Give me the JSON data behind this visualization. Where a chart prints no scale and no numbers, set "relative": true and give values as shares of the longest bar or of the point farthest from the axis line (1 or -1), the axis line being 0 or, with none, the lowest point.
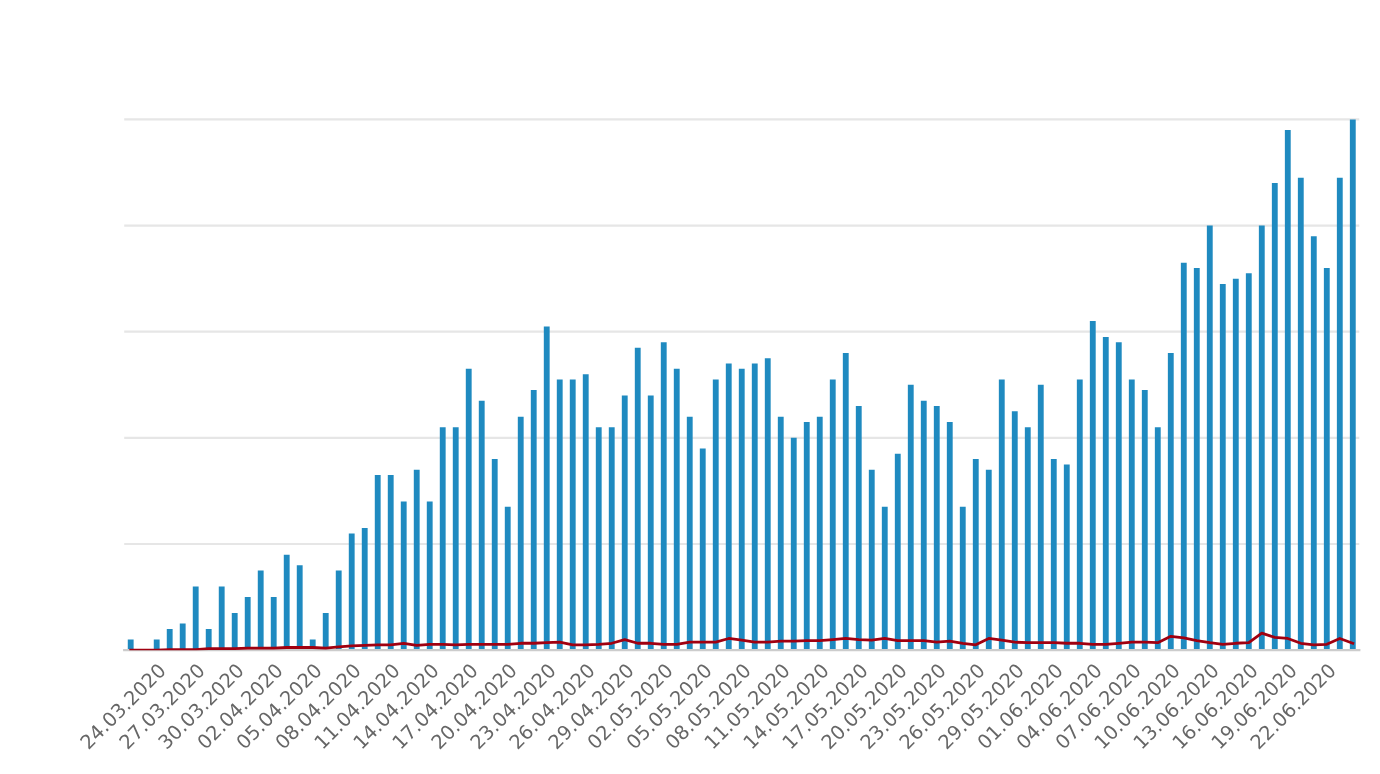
{
  "chart_data": {
    "type": "bar",
    "relative": true,
    "grid": "y",
    "legend": false,
    "categories": [
      null,
      null,
      "24.03.2020",
      null,
      null,
      "27.03.2020",
      null,
      null,
      "30.03.2020",
      null,
      null,
      "02.04.2020",
      null,
      null,
      "05.04.2020",
      null,
      null,
      "08.04.2020",
      null,
      null,
      "11.04.2020",
      null,
      null,
      "14.04.2020",
      null,
      null,
      "17.04.2020",
      null,
      null,
      "20.04.2020",
      null,
      null,
      "23.04.2020",
      null,
      null,
      "26.04.2020",
      null,
      null,
      "29.04.2020",
      null,
      null,
      "02.05.2020",
      null,
      null,
      "05.05.2020",
      null,
      null,
      "08.05.2020",
      null,
      null,
      "11.05.2020",
      null,
      null,
      "14.05.2020",
      null,
      null,
      "17.05.2020",
      null,
      null,
      "20.05.2020",
      null,
      null,
      "23.05.2020",
      null,
      null,
      "26.05.2020",
      null,
      null,
      "29.05.2020",
      null,
      null,
      "01.06.2020",
      null,
      null,
      "04.06.2020",
      null,
      null,
      "07.06.2020",
      null,
      null,
      "10.06.2020",
      null,
      null,
      "13.06.2020",
      null,
      null,
      "16.06.2020",
      null,
      null,
      "19.06.2020",
      null,
      null,
      "22.06.2020",
      null,
      null
    ],
    "series": [
      {
        "color": "#1f8ac0",
        "values": [
          0.02,
          0,
          0.02,
          0.04,
          0.05,
          0.12,
          0.04,
          0.12,
          0.07,
          0.1,
          0.15,
          0.1,
          0.18,
          0.16,
          0.02,
          0.07,
          0.15,
          0.22,
          0.23,
          0.33,
          0.33,
          0.28,
          0.34,
          0.28,
          0.42,
          0.42,
          0.53,
          0.47,
          0.36,
          0.27,
          0.44,
          0.49,
          0.61,
          0.51,
          0.51,
          0.52,
          0.42,
          0.42,
          0.48,
          0.57,
          0.48,
          0.58,
          0.53,
          0.44,
          0.38,
          0.51,
          0.54,
          0.53,
          0.54,
          0.55,
          0.44,
          0.4,
          0.43,
          0.44,
          0.51,
          0.56,
          0.46,
          0.34,
          0.27,
          0.37,
          0.5,
          0.47,
          0.46,
          0.43,
          0.27,
          0.36,
          0.34,
          0.51,
          0.45,
          0.42,
          0.5,
          0.36,
          0.35,
          0.51,
          0.62,
          0.59,
          0.58,
          0.51,
          0.49,
          0.42,
          0.56,
          0.73,
          0.72,
          0.8,
          0.69,
          0.7,
          0.71,
          0.8,
          0.88,
          0.98,
          0.89,
          0.78,
          0.72,
          0.89,
          1
        ]
      },
      {
        "type": "line",
        "color": "#a00010",
        "marker": "none",
        "line_style": "solid",
        "values": [
          0,
          0,
          0,
          0.001,
          0.001,
          0.001,
          0.003,
          0.003,
          0.003,
          0.004,
          0.004,
          0.004,
          0.005,
          0.005,
          0.005,
          0.004,
          0.006,
          0.008,
          0.009,
          0.01,
          0.01,
          0.013,
          0.009,
          0.011,
          0.011,
          0.01,
          0.011,
          0.011,
          0.011,
          0.011,
          0.013,
          0.013,
          0.014,
          0.015,
          0.01,
          0.01,
          0.011,
          0.013,
          0.02,
          0.013,
          0.013,
          0.011,
          0.011,
          0.015,
          0.015,
          0.015,
          0.022,
          0.019,
          0.015,
          0.015,
          0.017,
          0.017,
          0.018,
          0.018,
          0.02,
          0.022,
          0.02,
          0.019,
          0.022,
          0.018,
          0.018,
          0.018,
          0.015,
          0.017,
          0.013,
          0.01,
          0.022,
          0.019,
          0.015,
          0.014,
          0.014,
          0.014,
          0.013,
          0.013,
          0.011,
          0.011,
          0.013,
          0.015,
          0.015,
          0.014,
          0.026,
          0.023,
          0.018,
          0.014,
          0.011,
          0.013,
          0.014,
          0.032,
          0.024,
          0.022,
          0.013,
          0.01,
          0.011,
          0.022,
          0.013
        ]
      }
    ]
  }
}
